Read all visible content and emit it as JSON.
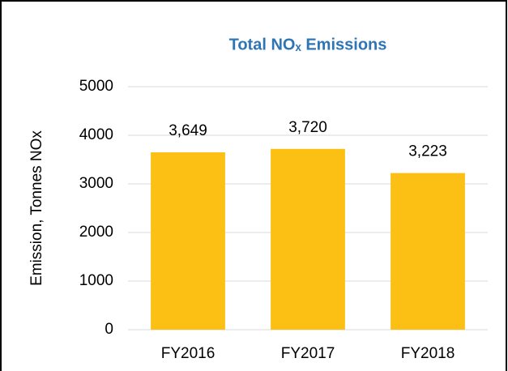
{
  "chart_data": {
    "type": "bar",
    "title": "Total NOₓ Emissions",
    "y_label": "Emission, Tonnes NOx",
    "categories": [
      "FY2016",
      "FY2017",
      "FY2018"
    ],
    "values": [
      3649,
      3720,
      3223
    ],
    "value_labels": [
      "3,649",
      "3,720",
      "3,223"
    ],
    "color": "#fcbf14",
    "ylim": [
      0,
      5000
    ],
    "yticks": [
      0,
      1000,
      2000,
      3000,
      4000,
      5000
    ],
    "grid": true
  }
}
